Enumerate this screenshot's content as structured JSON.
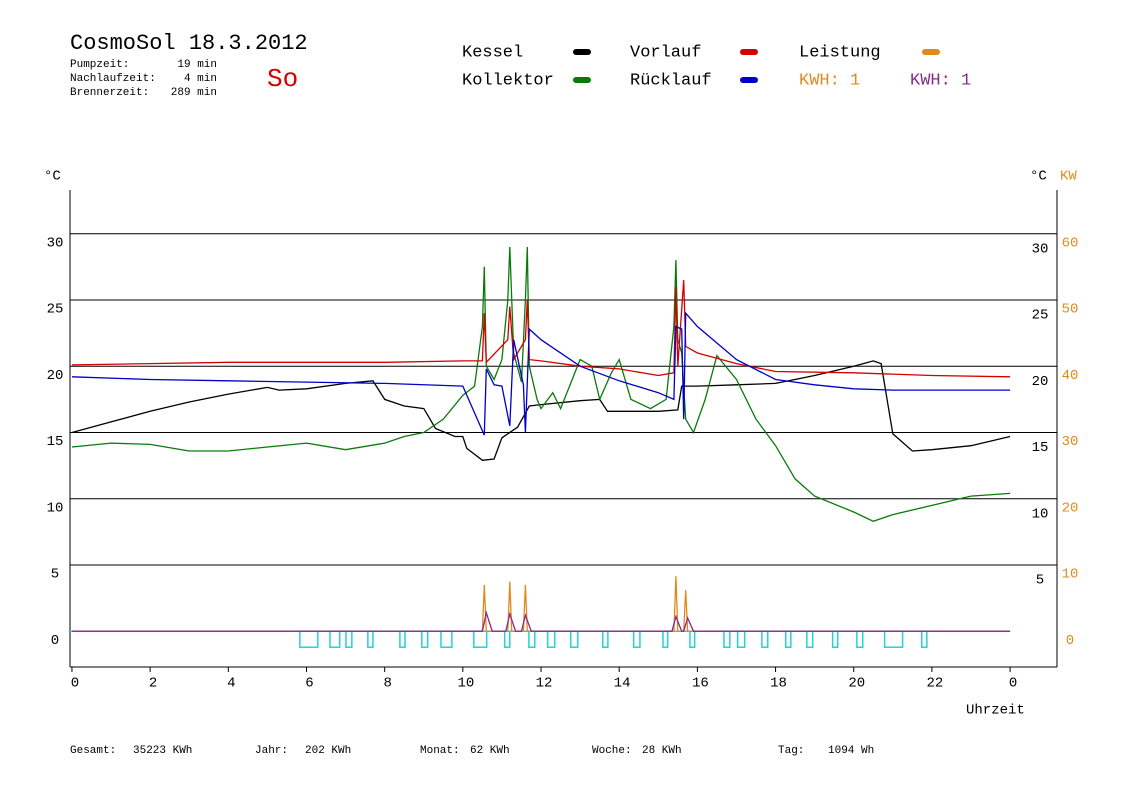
{
  "chart_data": {
    "type": "line",
    "title": "CosmoSol 18.3.2012",
    "day": "So",
    "stats": [
      {
        "label": "Pumpzeit:",
        "value": "19 min"
      },
      {
        "label": "Nachlaufzeit:",
        "value": "4 min"
      },
      {
        "label": "Brennerzeit:",
        "value": "289 min"
      }
    ],
    "y_unit": "°C",
    "y_right_unit": "°C",
    "y2_unit": "KW",
    "x_label": "Uhrzeit",
    "kwh_label": {
      "text": "KWH: 1",
      "color": "#e08a1e"
    },
    "xlim": [
      -0.05,
      25.2
    ],
    "xticks": [
      0,
      2,
      4,
      6,
      8,
      10,
      12,
      14,
      16,
      18,
      20,
      22,
      {
        "value": 24,
        "label": "0"
      }
    ],
    "ylim": [
      -2.7,
      33.3
    ],
    "yticks": [
      0,
      5,
      10,
      15,
      20,
      25,
      30
    ],
    "yticks_right": [
      5,
      10,
      15,
      20,
      25,
      30
    ],
    "y2lim": [
      -5.4,
      66.6
    ],
    "y2ticks": [
      0,
      10,
      20,
      30,
      40,
      50,
      60
    ],
    "series": [
      {
        "name": "Kessel",
        "color": "#000000",
        "x": [
          0,
          1,
          2,
          3,
          4,
          5,
          5.3,
          6,
          7,
          7.7,
          8,
          8.5,
          9,
          9.3,
          9.8,
          10,
          10.1,
          10.5,
          10.8,
          11,
          11.4,
          11.7,
          12,
          13,
          13.5,
          13.7,
          15,
          15.5,
          15.6,
          16,
          17,
          18,
          19,
          20,
          20.5,
          20.7,
          21,
          21.5,
          22,
          23,
          24
        ],
        "values": [
          15.0,
          15.8,
          16.6,
          17.3,
          17.9,
          18.4,
          18.2,
          18.3,
          18.7,
          18.9,
          17.5,
          17.0,
          16.8,
          15.3,
          14.7,
          14.7,
          13.8,
          12.9,
          13.0,
          14.6,
          15.4,
          17.0,
          17.1,
          17.4,
          17.5,
          16.6,
          16.6,
          16.7,
          18.5,
          18.5,
          18.6,
          18.7,
          19.3,
          20.0,
          20.4,
          20.2,
          14.9,
          13.6,
          13.7,
          14.0,
          14.7
        ]
      },
      {
        "name": "Kollektor",
        "color": "#0a7a0a",
        "x": [
          0,
          1,
          2,
          3,
          4,
          5,
          6,
          7,
          8,
          8.5,
          9,
          9.5,
          10,
          10.3,
          10.5,
          10.55,
          10.6,
          10.8,
          11,
          11.15,
          11.2,
          11.3,
          11.5,
          11.6,
          11.65,
          11.7,
          11.9,
          12,
          12.3,
          12.5,
          13,
          13.3,
          13.5,
          13.8,
          14,
          14.3,
          14.8,
          15.2,
          15.4,
          15.45,
          15.5,
          15.6,
          15.7,
          15.9,
          16.2,
          16.5,
          17,
          17.5,
          18,
          18.5,
          19,
          20,
          20.5,
          21,
          22,
          23,
          24
        ],
        "values": [
          13.9,
          14.2,
          14.1,
          13.6,
          13.6,
          13.9,
          14.2,
          13.7,
          14.2,
          14.7,
          15.0,
          16.0,
          17.8,
          18.5,
          23,
          27.5,
          20,
          19,
          20.5,
          25,
          29,
          21,
          18.8,
          25,
          29,
          20,
          17.5,
          16.8,
          18,
          16.8,
          20.5,
          20.0,
          17.5,
          19.5,
          20.5,
          17.5,
          16.8,
          17.5,
          23,
          28,
          22,
          21,
          16,
          15,
          17.5,
          20.8,
          19,
          16,
          14,
          11.5,
          10.2,
          9.0,
          8.3,
          8.8,
          9.5,
          10.2,
          10.4
        ]
      },
      {
        "name": "Vorlauf",
        "color": "#d40000",
        "x": [
          0,
          2,
          4,
          6,
          8,
          10,
          10.5,
          10.55,
          10.6,
          11.15,
          11.2,
          11.3,
          11.6,
          11.65,
          11.7,
          12,
          13,
          14,
          15,
          15.4,
          15.45,
          15.5,
          15.65,
          15.7,
          16,
          17,
          18,
          20,
          22,
          24
        ],
        "values": [
          20.1,
          20.2,
          20.3,
          20.3,
          20.3,
          20.4,
          20.4,
          24,
          20.3,
          22,
          24.5,
          20.5,
          22,
          25,
          20.5,
          20.4,
          20.0,
          19.8,
          19.3,
          19.5,
          26,
          20,
          26.5,
          21.5,
          21.0,
          20.2,
          19.6,
          19.5,
          19.3,
          19.2
        ]
      },
      {
        "name": "Rücklauf",
        "color": "#0000c8",
        "x": [
          0,
          2,
          4,
          6,
          8,
          10,
          10.55,
          10.6,
          10.8,
          11,
          11.2,
          11.3,
          11.55,
          11.6,
          11.7,
          12,
          13,
          14,
          15,
          15.4,
          15.45,
          15.6,
          15.65,
          15.7,
          16,
          17,
          18,
          19,
          20,
          21,
          24
        ],
        "values": [
          19.2,
          19.0,
          18.9,
          18.8,
          18.7,
          18.5,
          14.8,
          19.8,
          18.6,
          18.5,
          15.5,
          22,
          18.6,
          15,
          22.8,
          22.0,
          20.0,
          18.9,
          18.0,
          17.5,
          23,
          22.8,
          16,
          24,
          23,
          20.5,
          19.0,
          18.6,
          18.3,
          18.2,
          18.2
        ]
      },
      {
        "name": "Leistung",
        "color": "#e08a1e",
        "axis": "y2",
        "x": [
          0,
          10.5,
          10.55,
          10.6,
          11.15,
          11.2,
          11.25,
          11.55,
          11.6,
          11.65,
          15.4,
          15.45,
          15.5,
          15.65,
          15.7,
          15.75,
          24
        ],
        "values": [
          0,
          0,
          7,
          0,
          0,
          7.5,
          0,
          0,
          7,
          0,
          0,
          8.3,
          0,
          0,
          6.2,
          0,
          0
        ]
      },
      {
        "name": "KWH: 1",
        "color": "#8a2a8a",
        "axis": "y2",
        "x": [
          0,
          10.5,
          10.6,
          10.75,
          11.1,
          11.2,
          11.35,
          11.5,
          11.6,
          11.75,
          15.35,
          15.45,
          15.6,
          15.65,
          15.75,
          15.9,
          24
        ],
        "values": [
          0,
          0,
          2.8,
          0,
          0,
          2.6,
          0,
          0,
          2.4,
          0,
          0,
          2.2,
          0,
          0,
          2.0,
          0,
          0
        ]
      }
    ],
    "pump_color": "#22d3d3",
    "pump_intervals": [
      [
        5.83,
        6.29
      ],
      [
        6.6,
        6.85
      ],
      [
        7.01,
        7.16
      ],
      [
        7.57,
        7.7
      ],
      [
        8.39,
        8.52
      ],
      [
        8.95,
        9.1
      ],
      [
        9.44,
        9.72
      ],
      [
        10.28,
        10.61
      ],
      [
        11.07,
        11.2
      ],
      [
        11.69,
        11.84
      ],
      [
        12.17,
        12.35
      ],
      [
        12.76,
        12.94
      ],
      [
        13.58,
        13.71
      ],
      [
        14.37,
        14.53
      ],
      [
        15.12,
        15.24
      ],
      [
        15.81,
        15.93
      ],
      [
        16.68,
        16.83
      ],
      [
        17.03,
        17.21
      ],
      [
        17.65,
        17.8
      ],
      [
        18.26,
        18.39
      ],
      [
        18.8,
        18.95
      ],
      [
        19.46,
        19.59
      ],
      [
        20.08,
        20.23
      ],
      [
        20.79,
        21.25
      ],
      [
        21.74,
        21.87
      ]
    ],
    "totals": [
      {
        "label": "Gesamt:",
        "value": "35223 KWh"
      },
      {
        "label": "Jahr:",
        "value": "202 KWh"
      },
      {
        "label": "Monat:",
        "value": "62 KWh"
      },
      {
        "label": "Woche:",
        "value": "28 KWh"
      },
      {
        "label": "Tag:",
        "value": "1094 Wh"
      }
    ]
  }
}
